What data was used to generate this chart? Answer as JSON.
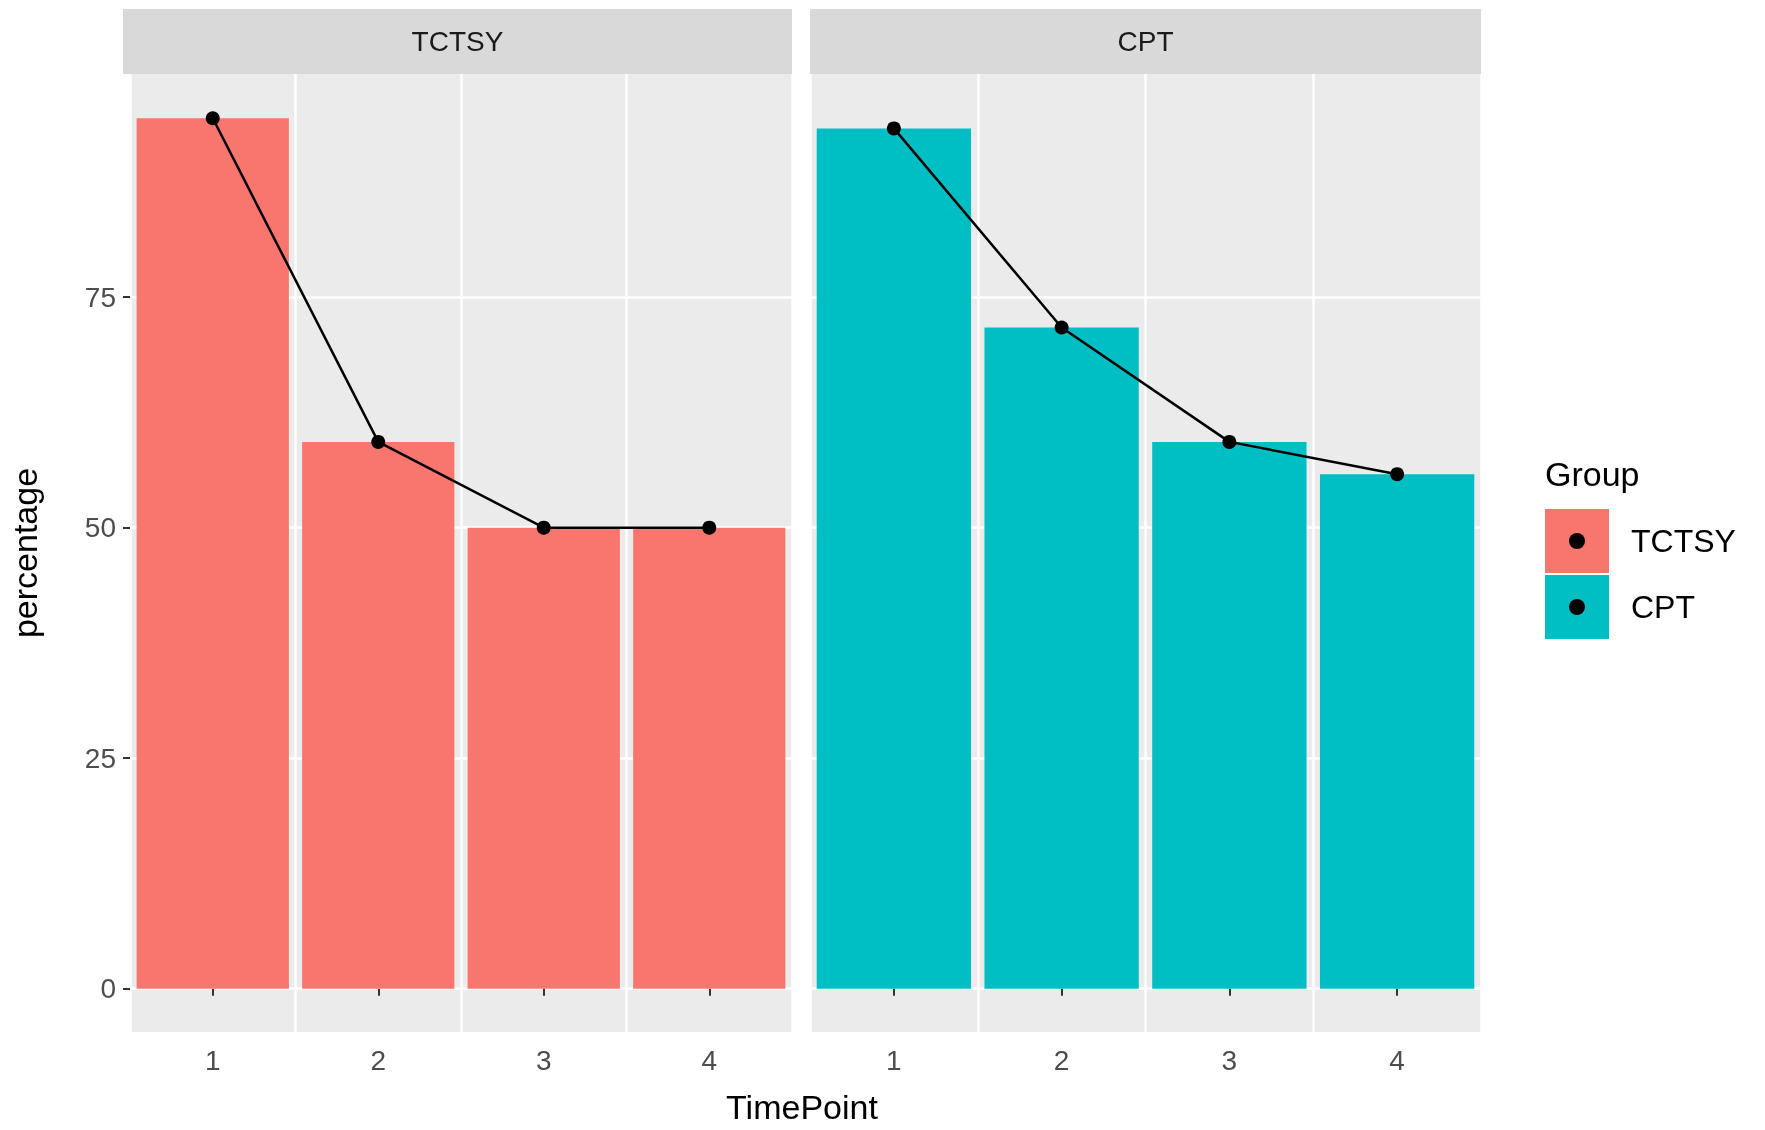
{
  "chart_data": [
    {
      "type": "bar",
      "title": "TCTSY",
      "xlabel": "TimePoint",
      "ylabel": "percentage",
      "categories": [
        "1",
        "2",
        "3",
        "4"
      ],
      "series": [
        {
          "name": "TCTSY",
          "color": "#f8766d",
          "values": [
            94.4,
            59.3,
            50,
            50
          ]
        },
        {
          "type": "line",
          "color": "#000000",
          "values": [
            94.4,
            59.3,
            50,
            50
          ]
        }
      ],
      "ylim": [
        -4.7,
        99.2
      ],
      "yticks": [
        0,
        25,
        50,
        75
      ],
      "grid": true,
      "marker": "circle",
      "line_style": "solid",
      "legend": "right"
    },
    {
      "type": "bar",
      "title": "CPT",
      "legend_title": "Group",
      "categories": [
        "1",
        "2",
        "3",
        "4"
      ],
      "series": [
        {
          "name": "CPT",
          "color": "#00bfc4",
          "values": [
            93.3,
            71.7,
            59.3,
            55.8
          ]
        },
        {
          "type": "line",
          "color": "#000000",
          "values": [
            93.3,
            71.7,
            59.3,
            55.8
          ]
        }
      ],
      "ylim": [
        -4.7,
        99.2
      ],
      "yticks": [
        0,
        25,
        50,
        75
      ],
      "grid": true,
      "marker": "circle",
      "line_style": "solid",
      "legend": "right",
      "tick_labels": "x"
    }
  ]
}
